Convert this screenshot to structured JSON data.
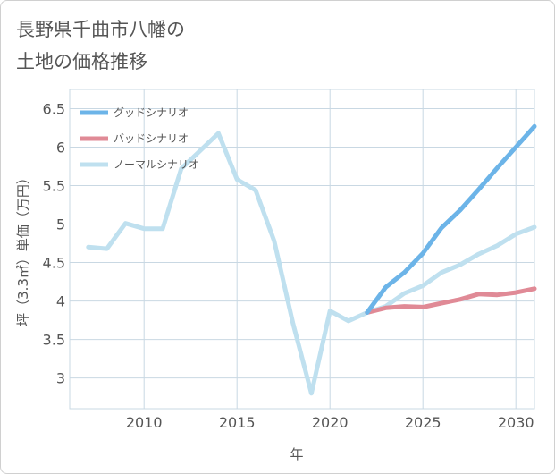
{
  "title": "長野県千曲市八幡の\n土地の価格推移",
  "chart_data": {
    "type": "line",
    "xlabel": "年",
    "ylabel": "坪（3.3㎡）単価（万円）",
    "xlim": [
      2006,
      2031
    ],
    "ylim": [
      2.6,
      6.75
    ],
    "xticks": [
      2010,
      2015,
      2020,
      2025,
      2030
    ],
    "xtick_labels": [
      "2010",
      "2015",
      "2020",
      "2025",
      "2030"
    ],
    "yticks": [
      3,
      3.5,
      4,
      4.5,
      5,
      5.5,
      6,
      6.5
    ],
    "ytick_labels": [
      "3",
      "3.5",
      "4",
      "4.5",
      "5",
      "5.5",
      "6",
      "6.5"
    ],
    "grid": true,
    "legend_position": "top-left",
    "series": [
      {
        "name": "グッドシナリオ",
        "color": "#6cb4e8",
        "x": [
          2022,
          2023,
          2024,
          2025,
          2026,
          2027,
          2028,
          2029,
          2030,
          2031
        ],
        "values": [
          3.85,
          4.18,
          4.37,
          4.62,
          4.95,
          5.18,
          5.45,
          5.73,
          6.0,
          6.27
        ]
      },
      {
        "name": "バッドシナリオ",
        "color": "#e08a96",
        "x": [
          2022,
          2023,
          2024,
          2025,
          2026,
          2027,
          2028,
          2029,
          2030,
          2031
        ],
        "values": [
          3.85,
          3.91,
          3.93,
          3.92,
          3.97,
          4.02,
          4.09,
          4.08,
          4.11,
          4.16
        ]
      },
      {
        "name": "ノーマルシナリオ",
        "color": "#bfe0ef",
        "x": [
          2007,
          2008,
          2009,
          2010,
          2011,
          2012,
          2013,
          2014,
          2015,
          2016,
          2017,
          2018,
          2019,
          2020,
          2021,
          2022,
          2023,
          2024,
          2025,
          2026,
          2027,
          2028,
          2029,
          2030,
          2031
        ],
        "values": [
          4.7,
          4.68,
          5.01,
          4.94,
          4.94,
          5.72,
          5.95,
          6.18,
          5.58,
          5.44,
          4.78,
          3.72,
          2.8,
          3.87,
          3.74,
          3.85,
          3.93,
          4.1,
          4.2,
          4.37,
          4.47,
          4.61,
          4.72,
          4.87,
          4.96
        ]
      }
    ]
  }
}
